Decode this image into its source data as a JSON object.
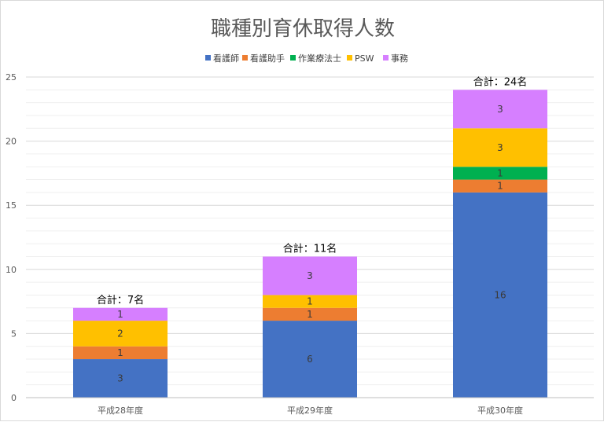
{
  "chart_data": {
    "type": "bar",
    "stacked": true,
    "title": "職種別育休取得人数",
    "categories": [
      "平成28年度",
      "平成29年度",
      "平成30年度"
    ],
    "series": [
      {
        "name": "看護師",
        "color": "#4472C4",
        "values": [
          3,
          6,
          16
        ]
      },
      {
        "name": "看護助手",
        "color": "#ED7D31",
        "values": [
          1,
          1,
          1
        ]
      },
      {
        "name": "作業療法士",
        "color": "#00B050",
        "values": [
          0,
          0,
          1
        ]
      },
      {
        "name": "PSW",
        "color": "#FFC000",
        "values": [
          2,
          1,
          3
        ]
      },
      {
        "name": "事務",
        "color": "#D67FFF",
        "values": [
          1,
          3,
          3
        ]
      }
    ],
    "totals": [
      "合計：7名",
      "合計：11名",
      "合計：24名"
    ],
    "ylim": [
      0,
      25
    ],
    "yticks": [
      0,
      5,
      10,
      15,
      20,
      25
    ],
    "grid": true,
    "legend_position": "top"
  }
}
